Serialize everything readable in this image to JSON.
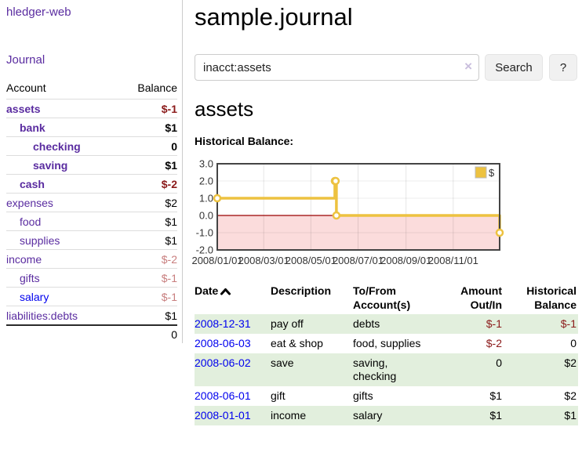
{
  "colors": {
    "purple": "#5a2ca0",
    "blue": "#0000ee",
    "neg_strong": "#8b1a1a",
    "neg_soft": "#c87e7e",
    "row_green": "#e2efdd",
    "gold": "#edc240",
    "pink_zone": "#fbdcdc",
    "zero_line": "#990000"
  },
  "app": {
    "brand": "hledger-web",
    "nav_journal": "Journal"
  },
  "sidebar": {
    "header": {
      "account": "Account",
      "balance": "Balance"
    },
    "accounts": [
      {
        "name": "assets",
        "indent": 0,
        "bold": true,
        "color": "purple",
        "balance": "$-1",
        "bclass": "neg-strong"
      },
      {
        "name": "bank",
        "indent": 1,
        "bold": true,
        "color": "purple",
        "balance": "$1",
        "bclass": ""
      },
      {
        "name": "checking",
        "indent": 2,
        "bold": true,
        "color": "purple",
        "balance": "0",
        "bclass": ""
      },
      {
        "name": "saving",
        "indent": 2,
        "bold": true,
        "color": "purple",
        "balance": "$1",
        "bclass": ""
      },
      {
        "name": "cash",
        "indent": 1,
        "bold": true,
        "color": "purple",
        "balance": "$-2",
        "bclass": "neg-strong"
      },
      {
        "name": "expenses",
        "indent": 0,
        "bold": false,
        "color": "purple",
        "balance": "$2",
        "bclass": ""
      },
      {
        "name": "food",
        "indent": 1,
        "bold": false,
        "color": "purple",
        "balance": "$1",
        "bclass": ""
      },
      {
        "name": "supplies",
        "indent": 1,
        "bold": false,
        "color": "purple",
        "balance": "$1",
        "bclass": ""
      },
      {
        "name": "income",
        "indent": 0,
        "bold": false,
        "color": "purple",
        "balance": "$-2",
        "bclass": "neg-soft"
      },
      {
        "name": "gifts",
        "indent": 1,
        "bold": false,
        "color": "purple",
        "balance": "$-1",
        "bclass": "neg-soft"
      },
      {
        "name": "salary",
        "indent": 1,
        "bold": false,
        "color": "blue",
        "balance": "$-1",
        "bclass": "neg-soft"
      },
      {
        "name": "liabilities:debts",
        "indent": 0,
        "bold": false,
        "color": "purple",
        "balance": "$1",
        "bclass": ""
      }
    ],
    "total": "0"
  },
  "main": {
    "title": "sample.journal",
    "search": {
      "value": "inacct:assets",
      "clear_icon": "×",
      "button": "Search",
      "help_button": "?"
    },
    "account_heading": "assets",
    "chart_label": "Historical Balance:"
  },
  "chart_data": {
    "type": "line",
    "step": true,
    "title": "Historical Balance:",
    "series": [
      {
        "name": "$",
        "points": [
          [
            "2008-01-01",
            1
          ],
          [
            "2008-06-01",
            2
          ],
          [
            "2008-06-02",
            2
          ],
          [
            "2008-06-03",
            0
          ],
          [
            "2008-12-31",
            -1
          ]
        ]
      }
    ],
    "x_ticks": [
      "2008/01/01",
      "2008/03/01",
      "2008/05/01",
      "2008/07/01",
      "2008/09/01",
      "2008/11/01"
    ],
    "y_ticks": [
      3.0,
      2.0,
      1.0,
      0.0,
      -1.0,
      -2.0
    ],
    "ylim": [
      -2,
      3
    ],
    "x_range": [
      "2008-01-01",
      "2008-12-31"
    ],
    "grid": true,
    "legend": {
      "label": "$",
      "position": "top-right"
    },
    "negative_region": true
  },
  "register": {
    "columns": [
      "Date",
      "Description",
      "To/From Account(s)",
      "Amount Out/In",
      "Historical Balance"
    ],
    "sort_icon": "chevron-up",
    "rows": [
      {
        "date": "2008-12-31",
        "description": "pay off",
        "accounts": "debts",
        "amount": "$-1",
        "amount_neg": true,
        "balance": "$-1",
        "balance_neg": true,
        "shaded": true
      },
      {
        "date": "2008-06-03",
        "description": "eat & shop",
        "accounts": "food, supplies",
        "amount": "$-2",
        "amount_neg": true,
        "balance": "0",
        "balance_neg": false,
        "shaded": false
      },
      {
        "date": "2008-06-02",
        "description": "save",
        "accounts": "saving,\nchecking",
        "amount": "0",
        "amount_neg": false,
        "balance": "$2",
        "balance_neg": false,
        "shaded": true
      },
      {
        "date": "2008-06-01",
        "description": "gift",
        "accounts": "gifts",
        "amount": "$1",
        "amount_neg": false,
        "balance": "$2",
        "balance_neg": false,
        "shaded": false
      },
      {
        "date": "2008-01-01",
        "description": "income",
        "accounts": "salary",
        "amount": "$1",
        "amount_neg": false,
        "balance": "$1",
        "balance_neg": false,
        "shaded": true
      }
    ]
  }
}
